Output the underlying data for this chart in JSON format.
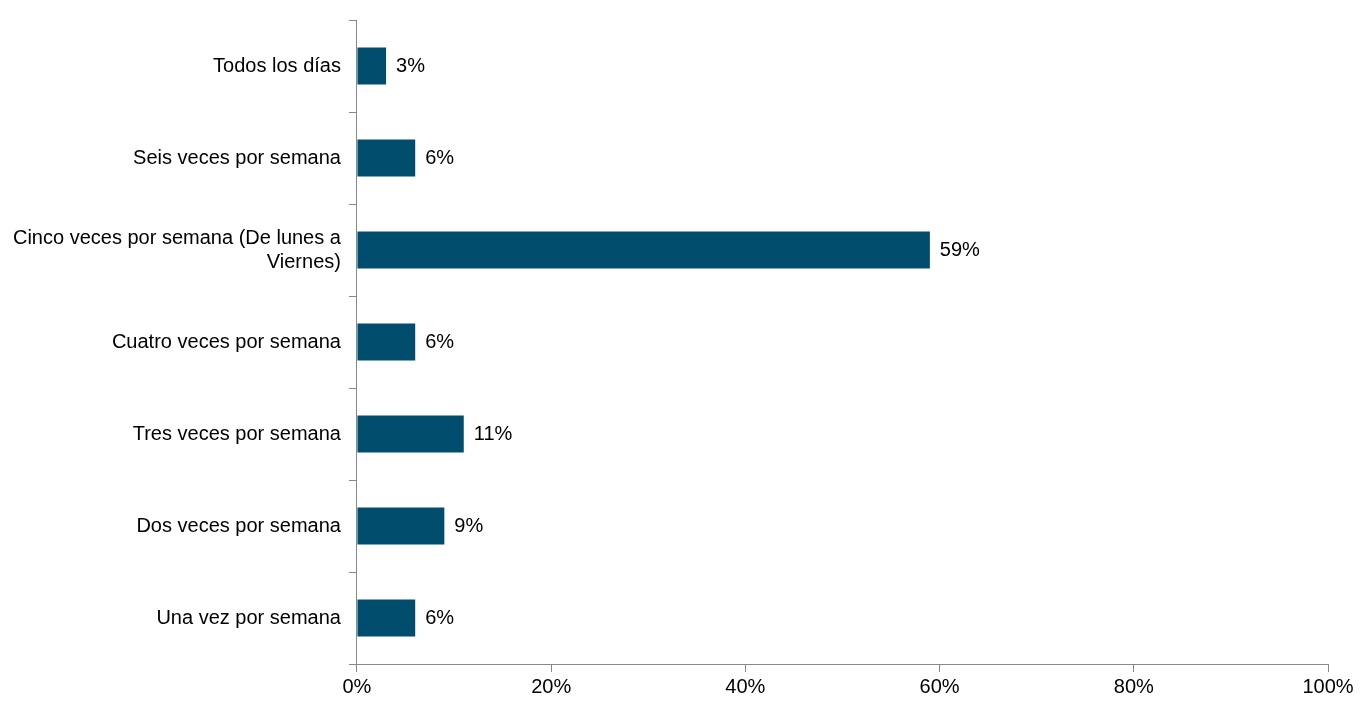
{
  "chart_data": {
    "type": "bar",
    "orientation": "horizontal",
    "categories": [
      "Todos los días",
      "Seis veces por semana",
      "Cinco veces por semana (De lunes a Viernes)",
      "Cuatro veces por semana",
      "Tres veces por semana",
      "Dos veces por semana",
      "Una vez por semana"
    ],
    "values": [
      3,
      6,
      59,
      6,
      11,
      9,
      6
    ],
    "value_labels": [
      "3%",
      "6%",
      "59%",
      "6%",
      "11%",
      "9%",
      "6%"
    ],
    "color": "#004d6e",
    "xlim": [
      0,
      100
    ],
    "xticks": [
      {
        "value": 0,
        "label": "0%"
      },
      {
        "value": 20,
        "label": "20%"
      },
      {
        "value": 40,
        "label": "40%"
      },
      {
        "value": 60,
        "label": "60%"
      },
      {
        "value": 80,
        "label": "80%"
      },
      {
        "value": 100,
        "label": "100%"
      }
    ],
    "grid": false,
    "legend": false
  }
}
